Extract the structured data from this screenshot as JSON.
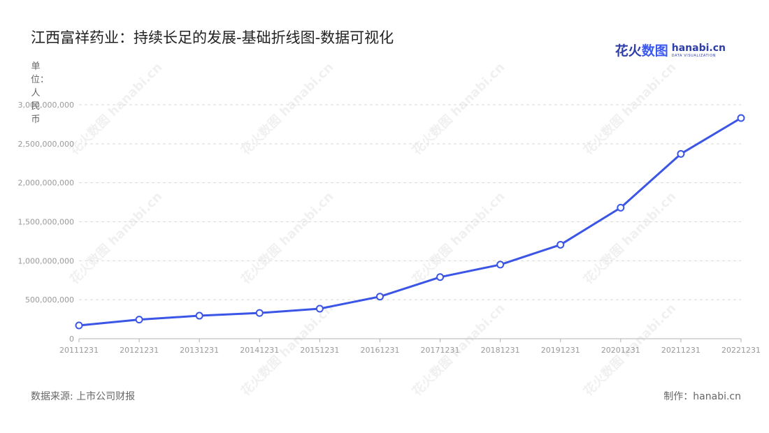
{
  "title": "江西富祥药业：持续长足的发展-基础折线图-数据可视化",
  "logo": {
    "cn_prefix": "花火",
    "cn_suffix": "数图",
    "en": "hanabi.cn",
    "tagline": "DATA VISUALIZATION"
  },
  "unit_label": "单位：人民币",
  "source": "数据来源: 上市公司财报",
  "credit": "制作：hanabi.cn",
  "watermark_text": "花火数图 hanabi.cn",
  "colors": {
    "line": "#3b55e6",
    "grid": "#d9d9d9",
    "axis_text": "#999999",
    "point_fill": "#ffffff"
  },
  "chart_data": {
    "type": "line",
    "categories": [
      "20111231",
      "20121231",
      "20131231",
      "20141231",
      "20151231",
      "20161231",
      "20171231",
      "20181231",
      "20191231",
      "20201231",
      "20211231",
      "20221231"
    ],
    "series": [
      {
        "values": [
          170000000,
          245000000,
          295000000,
          330000000,
          385000000,
          540000000,
          790000000,
          950000000,
          1205000000,
          1680000000,
          2370000000,
          2830000000
        ]
      }
    ],
    "yticks": [
      "0",
      "500,000,000",
      "1,000,000,000",
      "1,500,000,000",
      "2,000,000,000",
      "2,500,000,000",
      "3,000,000,000"
    ],
    "ylim": [
      0,
      3000000000
    ],
    "grid": true
  }
}
